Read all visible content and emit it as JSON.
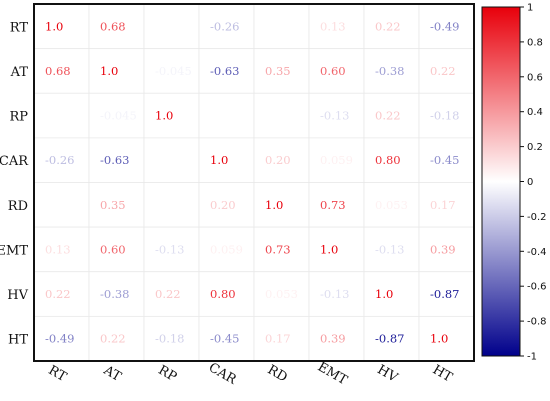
{
  "chart_data": {
    "type": "heatmap",
    "rows": [
      "RT",
      "AT",
      "RP",
      "CAR",
      "RD",
      "EMT",
      "HV",
      "HT"
    ],
    "cols": [
      "RT",
      "AT",
      "RP",
      "CAR",
      "RD",
      "EMT",
      "HV",
      "HT"
    ],
    "values": [
      [
        1.0,
        0.68,
        null,
        -0.26,
        null,
        0.13,
        0.22,
        -0.49
      ],
      [
        0.68,
        1.0,
        -0.045,
        -0.63,
        0.35,
        0.6,
        -0.38,
        0.22
      ],
      [
        null,
        -0.045,
        1.0,
        null,
        null,
        -0.13,
        0.22,
        -0.18
      ],
      [
        -0.26,
        -0.63,
        null,
        1.0,
        0.2,
        0.059,
        0.8,
        -0.45
      ],
      [
        null,
        0.35,
        null,
        0.2,
        1.0,
        0.73,
        0.053,
        0.17
      ],
      [
        0.13,
        0.6,
        -0.13,
        0.059,
        0.73,
        1.0,
        -0.13,
        0.39
      ],
      [
        0.22,
        -0.38,
        0.22,
        0.8,
        0.053,
        -0.13,
        1.0,
        -0.87
      ],
      [
        -0.49,
        0.22,
        -0.18,
        -0.45,
        0.17,
        0.39,
        -0.87,
        1.0
      ]
    ],
    "labels": [
      [
        "1.0",
        "0.68",
        "",
        "-0.26",
        "",
        "0.13",
        "0.22",
        "-0.49"
      ],
      [
        "0.68",
        "1.0",
        "-0.045",
        "-0.63",
        "0.35",
        "0.60",
        "-0.38",
        "0.22"
      ],
      [
        "",
        "-0.045",
        "1.0",
        "",
        "",
        "-0.13",
        "0.22",
        "-0.18"
      ],
      [
        "-0.26",
        "-0.63",
        "",
        "1.0",
        "0.20",
        "0.059",
        "0.80",
        "-0.45"
      ],
      [
        "",
        "0.35",
        "",
        "0.20",
        "1.0",
        "0.73",
        "0.053",
        "0.17"
      ],
      [
        "0.13",
        "0.60",
        "-0.13",
        "0.059",
        "0.73",
        "1.0",
        "-0.13",
        "0.39"
      ],
      [
        "0.22",
        "-0.38",
        "0.22",
        "0.80",
        "0.053",
        "-0.13",
        "1.0",
        "-0.87"
      ],
      [
        "-0.49",
        "0.22",
        "-0.18",
        "-0.45",
        "0.17",
        "0.39",
        "-0.87",
        "1.0"
      ]
    ],
    "colorbar": {
      "range": [
        -1,
        1
      ],
      "ticks": [
        "1",
        "0.8",
        "0.6",
        "0.4",
        "0.2",
        "0",
        "-0.2",
        "-0.4",
        "-0.6",
        "-0.8",
        "-1"
      ],
      "tick_values": [
        1,
        0.8,
        0.6,
        0.4,
        0.2,
        0,
        -0.2,
        -0.4,
        -0.6,
        -0.8,
        -1
      ],
      "colors": {
        "negative": "#00008b",
        "zero": "#ffffff",
        "positive": "#e8000b"
      }
    },
    "grid": false,
    "legend": "colorbar-right"
  }
}
